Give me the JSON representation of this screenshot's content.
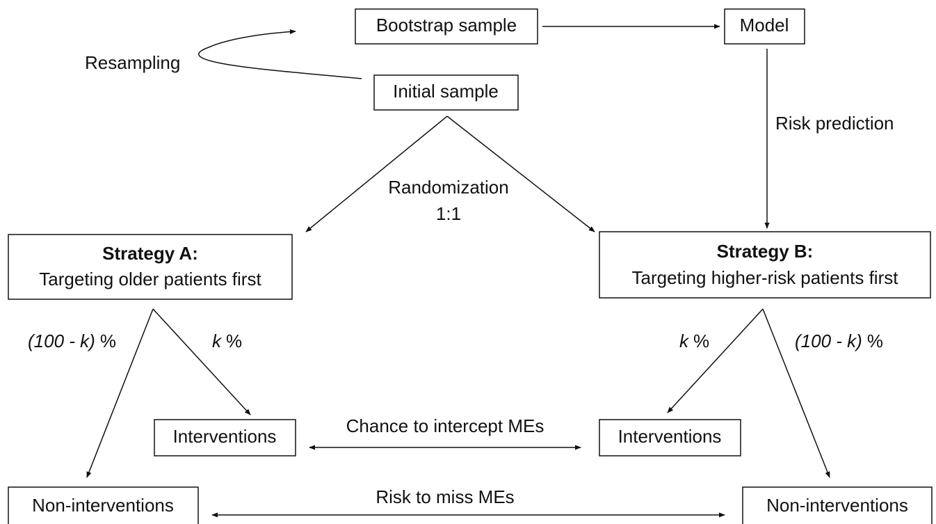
{
  "nodes": {
    "bootstrap": {
      "label": "Bootstrap sample"
    },
    "model": {
      "label": "Model"
    },
    "initial": {
      "label": "Initial sample"
    },
    "strategy_a": {
      "title": "Strategy A:",
      "label": "Targeting older patients first"
    },
    "strategy_b": {
      "title": "Strategy B:",
      "label": "Targeting higher-risk patients first"
    },
    "interventions_a": {
      "label": "Interventions"
    },
    "interventions_b": {
      "label": "Interventions"
    },
    "non_interventions_a": {
      "label": "Non-interventions"
    },
    "non_interventions_b": {
      "label": "Non-interventions"
    }
  },
  "edges": {
    "resampling": "Resampling",
    "risk_prediction": "Risk prediction",
    "randomization": [
      "Randomization",
      "1:1"
    ],
    "a_rest": {
      "italic": "(100 - k)",
      "unit": "%"
    },
    "a_k": {
      "italic": "k",
      "unit": "%"
    },
    "b_k": {
      "italic": "k",
      "unit": "%"
    },
    "b_rest": {
      "italic": "(100 - k)",
      "unit": "%"
    },
    "chance": "Chance to intercept MEs",
    "risk": "Risk to miss MEs"
  }
}
